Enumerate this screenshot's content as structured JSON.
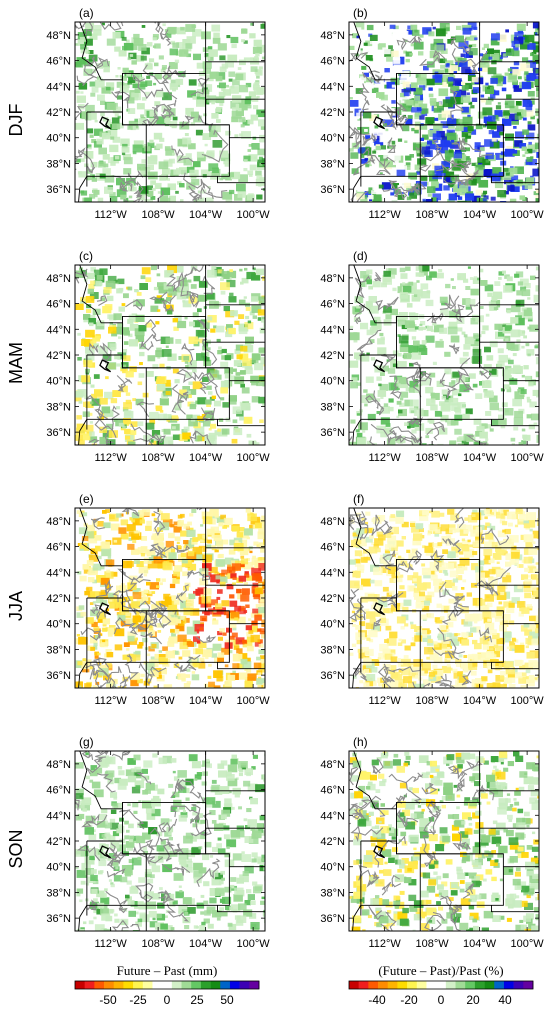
{
  "season_labels": [
    "DJF",
    "MAM",
    "JJA",
    "SON"
  ],
  "panels": [
    {
      "label": "(a)",
      "season": "DJF",
      "kind": "abs",
      "scheme": "green_light"
    },
    {
      "label": "(b)",
      "season": "DJF",
      "kind": "pct",
      "scheme": "green_blue"
    },
    {
      "label": "(c)",
      "season": "MAM",
      "kind": "abs",
      "scheme": "green_mixed"
    },
    {
      "label": "(d)",
      "season": "MAM",
      "kind": "pct",
      "scheme": "green_light"
    },
    {
      "label": "(e)",
      "season": "JJA",
      "kind": "abs",
      "scheme": "yellow_red"
    },
    {
      "label": "(f)",
      "season": "JJA",
      "kind": "pct",
      "scheme": "yellow"
    },
    {
      "label": "(g)",
      "season": "SON",
      "kind": "abs",
      "scheme": "green_light"
    },
    {
      "label": "(h)",
      "season": "SON",
      "kind": "pct",
      "scheme": "green_mixed"
    }
  ],
  "lat_ticks": [
    "48°N",
    "46°N",
    "44°N",
    "42°N",
    "40°N",
    "38°N",
    "36°N"
  ],
  "lon_ticks": [
    "112°W",
    "108°W",
    "104°W",
    "100°W"
  ],
  "colorbar_abs": {
    "title": "Future – Past (mm)",
    "tick_labels": [
      "-50",
      "-25",
      "0",
      "25",
      "50"
    ],
    "colors": [
      "#c80000",
      "#f01e1e",
      "#ff5a00",
      "#ff8c00",
      "#ffb400",
      "#ffdc00",
      "#fff550",
      "#ffffa0",
      "#ffffff",
      "#ffffff",
      "#d2f0c8",
      "#a0dc96",
      "#64c864",
      "#2ca02c",
      "#148c14",
      "#0064c8",
      "#0000e6",
      "#3c00b4",
      "#6400a0"
    ]
  },
  "colorbar_pct": {
    "title": "(Future – Past)/Past (%)",
    "tick_labels": [
      "-40",
      "-20",
      "0",
      "20",
      "40"
    ],
    "colors": [
      "#c80000",
      "#f01e1e",
      "#ff5a00",
      "#ff8c00",
      "#ffb400",
      "#ffdc00",
      "#fff550",
      "#ffffa0",
      "#ffffff",
      "#ffffff",
      "#d2f0c8",
      "#a0dc96",
      "#64c864",
      "#2ca02c",
      "#148c14",
      "#0064c8",
      "#0000e6",
      "#3c00b4",
      "#6400a0"
    ]
  }
}
